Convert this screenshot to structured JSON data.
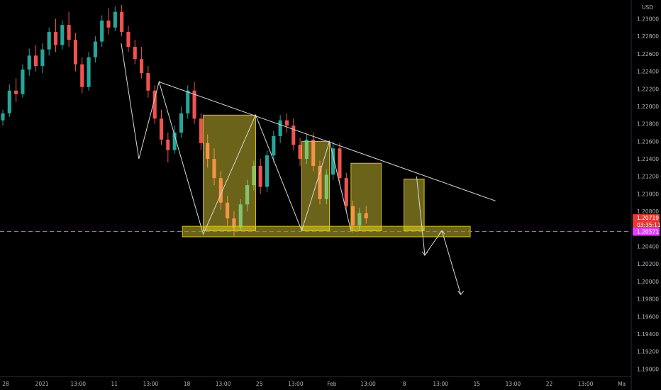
{
  "chart_data": {
    "type": "candlestick",
    "currency": "USD",
    "y_ticks": [
      "1.23000",
      "1.22800",
      "1.22600",
      "1.22400",
      "1.22200",
      "1.22000",
      "1.21800",
      "1.21600",
      "1.21400",
      "1.21200",
      "1.21000",
      "1.20800",
      "1.20600",
      "1.20400",
      "1.20200",
      "1.20000",
      "1.19800",
      "1.19600",
      "1.19400",
      "1.19200",
      "1.19000"
    ],
    "ylim": [
      1.1893,
      1.2315
    ],
    "x_ticks": [
      "28",
      "2021",
      "13:00",
      "11",
      "13:00",
      "18",
      "13:00",
      "25",
      "13:00",
      "Feb",
      "13:00",
      "8",
      "13:00",
      "15",
      "13:00",
      "22",
      "13:00",
      "Ma"
    ],
    "last_price": "1.20719",
    "countdown": "03:35:11",
    "support_price": "1.20571",
    "support_price_display": "1.20571",
    "colors": {
      "up": "#26a69a",
      "down": "#ef5350",
      "guide": "#e040fb",
      "zone_fill": "#ffeb3b",
      "zone_stroke": "#d4c21c",
      "line": "#d8d8d8",
      "price_tag": "#e53935",
      "support_tag": "#e040fb"
    },
    "ohlc": [
      [
        1.2184,
        1.2196,
        1.2178,
        1.2192
      ],
      [
        1.2192,
        1.2225,
        1.2188,
        1.2218
      ],
      [
        1.2218,
        1.2232,
        1.2205,
        1.2214
      ],
      [
        1.2214,
        1.2248,
        1.221,
        1.2242
      ],
      [
        1.2242,
        1.2266,
        1.2235,
        1.2258
      ],
      [
        1.2258,
        1.227,
        1.224,
        1.2246
      ],
      [
        1.2246,
        1.2272,
        1.2238,
        1.2265
      ],
      [
        1.2265,
        1.229,
        1.2258,
        1.2285
      ],
      [
        1.2285,
        1.23,
        1.2262,
        1.227
      ],
      [
        1.227,
        1.2298,
        1.2265,
        1.2293
      ],
      [
        1.2293,
        1.2308,
        1.2268,
        1.2276
      ],
      [
        1.2276,
        1.2284,
        1.224,
        1.2248
      ],
      [
        1.2248,
        1.2256,
        1.2215,
        1.2222
      ],
      [
        1.2222,
        1.2262,
        1.2218,
        1.2256
      ],
      [
        1.2256,
        1.228,
        1.225,
        1.2274
      ],
      [
        1.2274,
        1.2304,
        1.2268,
        1.2298
      ],
      [
        1.2298,
        1.2312,
        1.2282,
        1.229
      ],
      [
        1.229,
        1.2314,
        1.2286,
        1.2308
      ],
      [
        1.2308,
        1.2316,
        1.228,
        1.2285
      ],
      [
        1.2285,
        1.2292,
        1.2262,
        1.2268
      ],
      [
        1.2268,
        1.2276,
        1.2248,
        1.2254
      ],
      [
        1.2254,
        1.2268,
        1.2232,
        1.2238
      ],
      [
        1.2238,
        1.2246,
        1.221,
        1.2218
      ],
      [
        1.2218,
        1.2224,
        1.218,
        1.2186
      ],
      [
        1.2186,
        1.2196,
        1.2156,
        1.2162
      ],
      [
        1.2162,
        1.217,
        1.2136,
        1.215
      ],
      [
        1.215,
        1.2178,
        1.2146,
        1.217
      ],
      [
        1.217,
        1.22,
        1.2164,
        1.2192
      ],
      [
        1.2192,
        1.2224,
        1.2186,
        1.2218
      ],
      [
        1.2218,
        1.2228,
        1.218,
        1.2186
      ],
      [
        1.2186,
        1.2192,
        1.215,
        1.2158
      ],
      [
        1.2158,
        1.2168,
        1.213,
        1.214
      ],
      [
        1.214,
        1.2152,
        1.211,
        1.2118
      ],
      [
        1.2118,
        1.2126,
        1.2082,
        1.209
      ],
      [
        1.209,
        1.2098,
        1.2064,
        1.2072
      ],
      [
        1.2072,
        1.208,
        1.2052,
        1.2062
      ],
      [
        1.2062,
        1.2094,
        1.2058,
        1.2088
      ],
      [
        1.2088,
        1.2116,
        1.208,
        1.211
      ],
      [
        1.211,
        1.2138,
        1.2104,
        1.2132
      ],
      [
        1.2132,
        1.214,
        1.21,
        1.2108
      ],
      [
        1.2108,
        1.215,
        1.2102,
        1.2144
      ],
      [
        1.2144,
        1.2172,
        1.2136,
        1.2166
      ],
      [
        1.2166,
        1.219,
        1.2158,
        1.2184
      ],
      [
        1.2184,
        1.2192,
        1.217,
        1.2178
      ],
      [
        1.2178,
        1.2186,
        1.215,
        1.2156
      ],
      [
        1.2156,
        1.2164,
        1.2132,
        1.214
      ],
      [
        1.214,
        1.2168,
        1.2134,
        1.2162
      ],
      [
        1.2162,
        1.217,
        1.2126,
        1.2132
      ],
      [
        1.2132,
        1.2138,
        1.2088,
        1.2094
      ],
      [
        1.2094,
        1.2128,
        1.2088,
        1.2122
      ],
      [
        1.2122,
        1.216,
        1.2116,
        1.2152
      ],
      [
        1.2152,
        1.2158,
        1.211,
        1.2118
      ],
      [
        1.2118,
        1.2124,
        1.208,
        1.2086
      ],
      [
        1.2086,
        1.2092,
        1.2056,
        1.2064
      ],
      [
        1.2064,
        1.2084,
        1.2058,
        1.2078
      ],
      [
        1.2078,
        1.2086,
        1.2066,
        1.2072
      ]
    ],
    "annotations": {
      "descending_trendline": {
        "from": [
          0.252,
          1.2228
        ],
        "to": [
          0.785,
          1.2092
        ]
      },
      "support_zone": {
        "from_x": 0.289,
        "to_x": 0.745,
        "low": 1.2051,
        "high": 1.2063
      },
      "support_level_line": 1.2057,
      "measure_boxes": [
        {
          "from_x": 0.322,
          "to_x": 0.405,
          "low": 1.2058,
          "high": 1.219
        },
        {
          "from_x": 0.478,
          "to_x": 0.522,
          "low": 1.2058,
          "high": 1.216
        },
        {
          "from_x": 0.556,
          "to_x": 0.604,
          "low": 1.2058,
          "high": 1.2135
        },
        {
          "from_x": 0.64,
          "to_x": 0.672,
          "low": 1.2058,
          "high": 1.2117
        }
      ],
      "zigzag": [
        [
          0.192,
          1.2272
        ],
        [
          0.22,
          1.214
        ],
        [
          0.252,
          1.2228
        ],
        [
          0.322,
          1.2054
        ],
        [
          0.405,
          1.219
        ],
        [
          0.478,
          1.2058
        ],
        [
          0.522,
          1.216
        ],
        [
          0.556,
          1.2058
        ]
      ],
      "projection": [
        [
          0.66,
          1.212
        ],
        [
          0.673,
          1.203
        ],
        [
          0.7,
          1.2058
        ],
        [
          0.73,
          1.1985
        ]
      ]
    }
  }
}
